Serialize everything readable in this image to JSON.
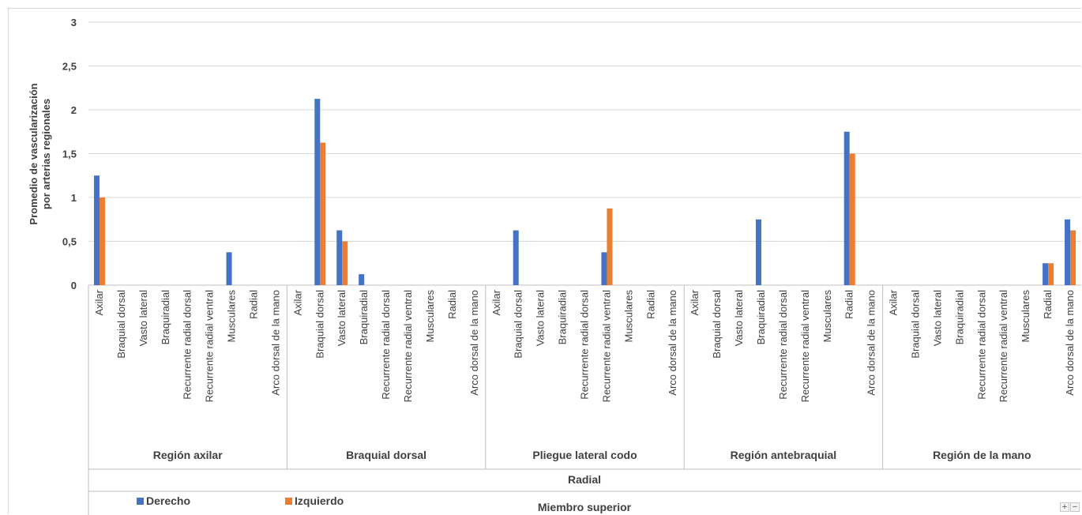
{
  "chart_data": {
    "type": "bar",
    "ylabel": [
      "Promedio de vascularización",
      "por arterias regionales"
    ],
    "ylim": [
      0,
      3
    ],
    "yticks": [
      "0",
      "0,5",
      "1",
      "1,5",
      "2",
      "2,5",
      "3"
    ],
    "group_level_1": "Radial",
    "group_level_2": "Miembro superior",
    "groups": [
      {
        "name": "Región axilar",
        "categories": [
          "Axilar",
          "Braquial dorsal",
          "Vasto lateral",
          "Braquiradial",
          "Recurrente radial dorsal",
          "Recurrente radial ventral",
          "Musculares",
          "Radial",
          "Arco dorsal de la mano"
        ],
        "derecho": [
          1.25,
          0,
          0,
          0,
          0,
          0,
          0.375,
          0,
          0
        ],
        "izquierdo": [
          1.0,
          0,
          0,
          0,
          0,
          0,
          0,
          0,
          0
        ]
      },
      {
        "name": "Braquial dorsal",
        "categories": [
          "Axilar",
          "Braquial dorsal",
          "Vasto lateral",
          "Braquiradial",
          "Recurrente radial dorsal",
          "Recurrente radial ventral",
          "Musculares",
          "Radial",
          "Arco dorsal de la mano"
        ],
        "derecho": [
          0,
          2.125,
          0.625,
          0.125,
          0,
          0,
          0,
          0,
          0
        ],
        "izquierdo": [
          0,
          1.625,
          0.5,
          0,
          0,
          0,
          0,
          0,
          0
        ]
      },
      {
        "name": "Pliegue lateral codo",
        "categories": [
          "Axilar",
          "Braquial dorsal",
          "Vasto lateral",
          "Braquiradial",
          "Recurrente radial dorsal",
          "Recurrente radial ventral",
          "Musculares",
          "Radial",
          "Arco dorsal de la mano"
        ],
        "derecho": [
          0,
          0.625,
          0,
          0,
          0,
          0.375,
          0,
          0,
          0
        ],
        "izquierdo": [
          0,
          0,
          0,
          0,
          0,
          0.875,
          0,
          0,
          0
        ]
      },
      {
        "name": "Región antebraquial",
        "categories": [
          "Axilar",
          "Braquial dorsal",
          "Vasto lateral",
          "Braquiradial",
          "Recurrente radial dorsal",
          "Recurrente radial ventral",
          "Musculares",
          "Radial",
          "Arco dorsal de la mano"
        ],
        "derecho": [
          0,
          0,
          0,
          0.75,
          0,
          0,
          0,
          1.75,
          0
        ],
        "izquierdo": [
          0,
          0,
          0,
          0,
          0,
          0,
          0,
          1.5,
          0
        ]
      },
      {
        "name": "Región de la mano",
        "categories": [
          "Axilar",
          "Braquial dorsal",
          "Vasto lateral",
          "Braquiradial",
          "Recurrente radial dorsal",
          "Recurrente radial ventral",
          "Musculares",
          "Radial",
          "Arco dorsal de la mano"
        ],
        "derecho": [
          0,
          0,
          0,
          0,
          0,
          0,
          0,
          0.25,
          0.75
        ],
        "izquierdo": [
          0,
          0,
          0,
          0,
          0,
          0,
          0,
          0.25,
          0.625
        ]
      }
    ],
    "series": [
      {
        "name": "Derecho",
        "color": "#4472C4"
      },
      {
        "name": "Izquierdo",
        "color": "#ED7D31"
      }
    ],
    "grid": true,
    "legend": "bottom-left"
  },
  "controls": {
    "zoom_in": "+",
    "zoom_out": "−"
  }
}
